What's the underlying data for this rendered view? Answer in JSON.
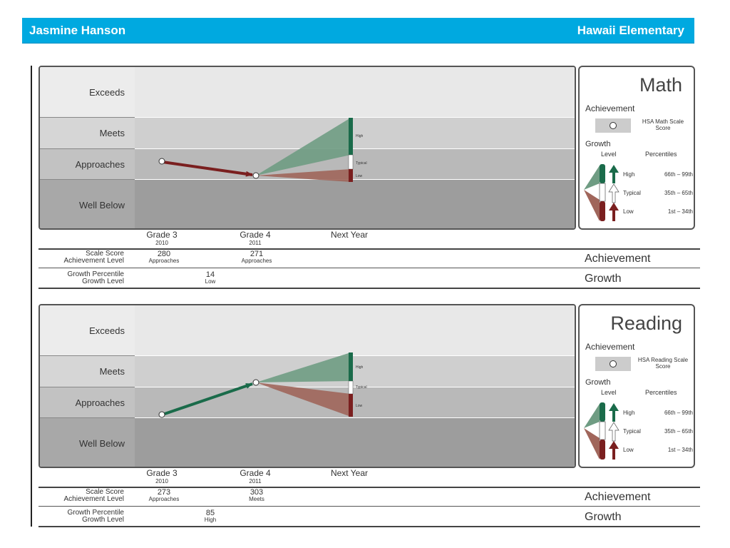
{
  "header": {
    "student": "Jasmine Hanson",
    "school": "Hawaii Elementary"
  },
  "bands": [
    "Exceeds",
    "Meets",
    "Approaches",
    "Well Below"
  ],
  "growth_labels": {
    "high": "High",
    "typical": "Typical",
    "low": "Low"
  },
  "x_labels": [
    {
      "grade": "Grade 3",
      "year": "2010"
    },
    {
      "grade": "Grade 4",
      "year": "2011"
    },
    {
      "grade": "Next Year",
      "year": ""
    }
  ],
  "row_labels": {
    "scale_score": "Scale Score",
    "achievement_level": "Achievement Level",
    "growth_percentile": "Growth Percentile",
    "growth_level": "Growth Level",
    "achievement": "Achievement",
    "growth": "Growth"
  },
  "legend": {
    "achievement": "Achievement",
    "growth": "Growth",
    "level": "Level",
    "percentiles": "Percentiles",
    "rows": [
      {
        "level": "High",
        "range": "66th – 99th"
      },
      {
        "level": "Typical",
        "range": "35th – 65th"
      },
      {
        "level": "Low",
        "range": "1st – 34th"
      }
    ]
  },
  "colors": {
    "header": "#00a9e0",
    "up": "#1a6b4a",
    "down": "#7a1f1f",
    "high_fan": "#6f9c83",
    "low_fan": "#a0665b"
  },
  "chart_data": [
    {
      "type": "line",
      "title": "Math",
      "scale_label": "HSA Math Scale Score",
      "x": [
        "Grade 3",
        "Grade 4",
        "Next Year"
      ],
      "scores": [
        280,
        271
      ],
      "levels": [
        "Approaches",
        "Approaches"
      ],
      "growth_percentile": "14",
      "growth_level": "Low"
    },
    {
      "type": "line",
      "title": "Reading",
      "scale_label": "HSA Reading Scale Score",
      "x": [
        "Grade 3",
        "Grade 4",
        "Next Year"
      ],
      "scores": [
        273,
        303
      ],
      "levels": [
        "Approaches",
        "Meets"
      ],
      "growth_percentile": "85",
      "growth_level": "High"
    }
  ]
}
